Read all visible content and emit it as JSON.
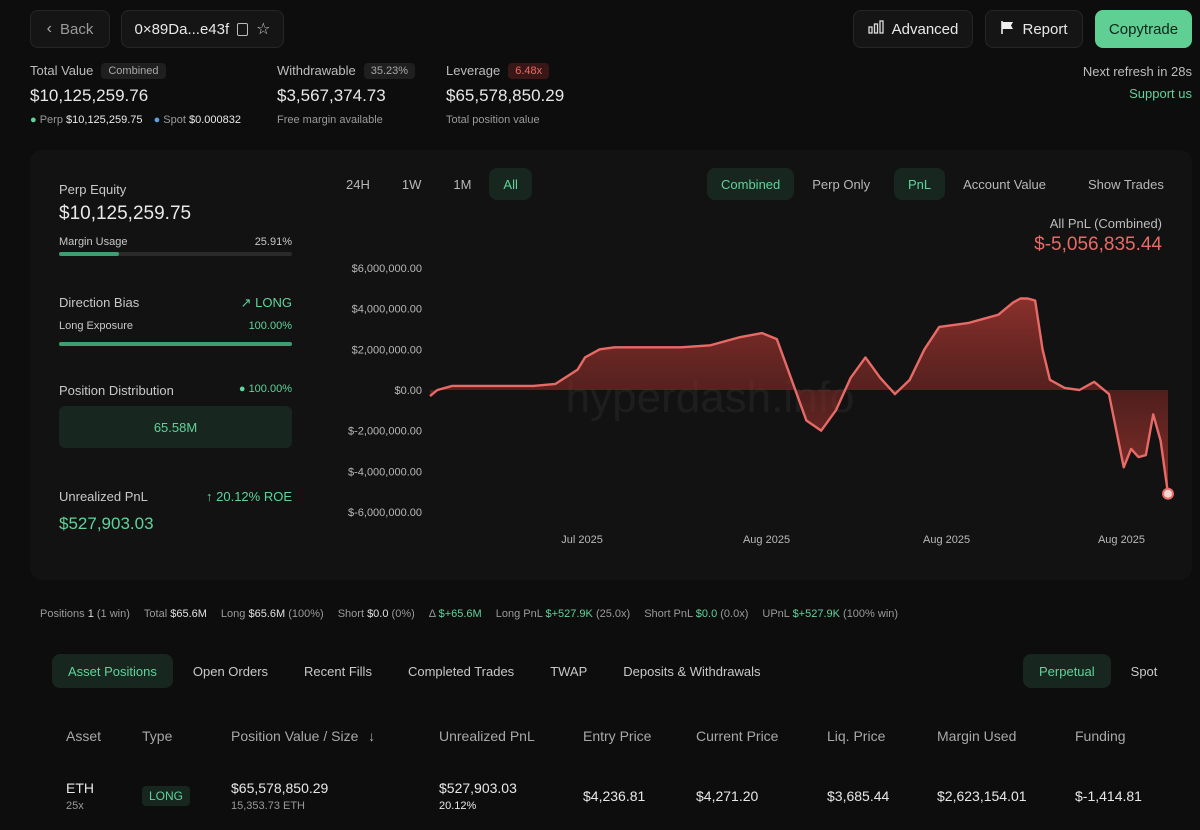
{
  "header": {
    "back_label": "Back",
    "address": "0×89Da...e43f",
    "advanced_label": "Advanced",
    "report_label": "Report",
    "copytrade_label": "Copytrade",
    "refresh_text": "Next refresh in 28s",
    "support_link": "Support us"
  },
  "summary": {
    "total_value_label": "Total Value",
    "total_value_badge": "Combined",
    "total_value": "$10,125,259.76",
    "perp_label": "Perp",
    "perp_value": "$10,125,259.75",
    "spot_label": "Spot",
    "spot_value": "$0.000832",
    "withdrawable_label": "Withdrawable",
    "withdrawable_badge": "35.23%",
    "withdrawable_value": "$3,567,374.73",
    "withdrawable_sub": "Free margin available",
    "leverage_label": "Leverage",
    "leverage_badge": "6.48x",
    "leverage_value": "$65,578,850.29",
    "leverage_sub": "Total position value"
  },
  "left_panel": {
    "perp_equity_label": "Perp Equity",
    "perp_equity_value": "$10,125,259.75",
    "margin_usage_label": "Margin Usage",
    "margin_usage_value": "25.91%",
    "margin_usage_fraction": 0.2591,
    "direction_bias_label": "Direction Bias",
    "direction_bias_value": "LONG",
    "long_exposure_label": "Long Exposure",
    "long_exposure_value": "100.00%",
    "long_exposure_fraction": 1.0,
    "position_distribution_label": "Position Distribution",
    "position_distribution_value": "100.00%",
    "position_distribution_amount": "65.58M",
    "unrealized_pnl_label": "Unrealized PnL",
    "unrealized_pnl_roe": "20.12% ROE",
    "unrealized_pnl_value": "$527,903.03"
  },
  "chart_controls": {
    "timeframes": [
      "24H",
      "1W",
      "1M",
      "All"
    ],
    "timeframe_active": "All",
    "scope": [
      "Combined",
      "Perp Only"
    ],
    "scope_active": "Combined",
    "metric": [
      "PnL",
      "Account Value"
    ],
    "metric_active": "PnL",
    "show_trades_label": "Show Trades"
  },
  "chart_header": {
    "title": "All PnL (Combined)",
    "value": "$-5,056,835.44"
  },
  "watermark": "hyperdash.info",
  "chart_data": {
    "type": "area",
    "ylim": [
      -6000000,
      6000000
    ],
    "yticks": [
      "$6,000,000.00",
      "$4,000,000.00",
      "$2,000,000.00",
      "$0.00",
      "$-2,000,000.00",
      "$-4,000,000.00",
      "$-6,000,000.00"
    ],
    "ytick_values": [
      6000000,
      4000000,
      2000000,
      0,
      -2000000,
      -4000000,
      -6000000
    ],
    "xtick_labels": [
      "Jul 2025",
      "Aug 2025",
      "Aug 2025",
      "Aug 2025"
    ],
    "xtick_positions": [
      0.206,
      0.456,
      0.7,
      0.937
    ],
    "series": [
      {
        "x": [
          0,
          0.01,
          0.03,
          0.06,
          0.1,
          0.14,
          0.17,
          0.2,
          0.21,
          0.23,
          0.25,
          0.27,
          0.3,
          0.34,
          0.38,
          0.42,
          0.45,
          0.47,
          0.49,
          0.51,
          0.53,
          0.55,
          0.57,
          0.59,
          0.61,
          0.63,
          0.65,
          0.67,
          0.69,
          0.71,
          0.73,
          0.75,
          0.77,
          0.79,
          0.8,
          0.81,
          0.82,
          0.83,
          0.84,
          0.86,
          0.88,
          0.9,
          0.92,
          0.93,
          0.94,
          0.95,
          0.96,
          0.97,
          0.98,
          0.99,
          1.0
        ],
        "y": [
          -300000,
          0,
          200000,
          200000,
          200000,
          200000,
          300000,
          1000000,
          1600000,
          2000000,
          2100000,
          2100000,
          2100000,
          2100000,
          2200000,
          2600000,
          2800000,
          2500000,
          500000,
          -1500000,
          -2000000,
          -1000000,
          600000,
          1600000,
          600000,
          -200000,
          500000,
          2000000,
          3100000,
          3200000,
          3300000,
          3500000,
          3700000,
          4300000,
          4500000,
          4500000,
          4400000,
          2000000,
          500000,
          100000,
          0,
          400000,
          -200000,
          -2000000,
          -3800000,
          -2900000,
          -3300000,
          -3200000,
          -1200000,
          -2500000,
          -5100000
        ]
      }
    ]
  },
  "positions_summary": {
    "positions_label": "Positions",
    "positions_count": "1",
    "positions_win": "(1 win)",
    "total_label": "Total",
    "total_value": "$65.6M",
    "long_label": "Long",
    "long_value": "$65.6M",
    "long_pct": "(100%)",
    "short_label": "Short",
    "short_value": "$0.0",
    "short_pct": "(0%)",
    "delta_symbol": "Δ",
    "delta_value": "$+65.6M",
    "long_pnl_label": "Long PnL",
    "long_pnl_value": "$+527.9K",
    "long_pnl_mult": "(25.0x)",
    "short_pnl_label": "Short PnL",
    "short_pnl_value": "$0.0",
    "short_pnl_mult": "(0.0x)",
    "upnl_label": "UPnL",
    "upnl_value": "$+527.9K",
    "upnl_win": "(100% win)"
  },
  "tabs": [
    "Asset Positions",
    "Open Orders",
    "Recent Fills",
    "Completed Trades",
    "TWAP",
    "Deposits & Withdrawals"
  ],
  "tabs_active": "Asset Positions",
  "market_toggle": [
    "Perpetual",
    "Spot"
  ],
  "market_active": "Perpetual",
  "table": {
    "headers": [
      "Asset",
      "Type",
      "Position Value / Size",
      "Unrealized PnL",
      "Entry Price",
      "Current Price",
      "Liq. Price",
      "Margin Used",
      "Funding"
    ],
    "rows": [
      {
        "asset": "ETH",
        "leverage": "25x",
        "type": "LONG",
        "position_value": "$65,578,850.29",
        "position_size": "15,353.73 ETH",
        "unrealized_pnl": "$527,903.03",
        "unrealized_pct": "20.12%",
        "entry_price": "$4,236.81",
        "current_price": "$4,271.20",
        "liq_price": "$3,685.44",
        "margin_used": "$2,623,154.01",
        "funding": "$-1,414.81"
      }
    ]
  },
  "colors": {
    "accent_green": "#5fd39a",
    "negative_red": "#e86a66",
    "background": "#0d0d0d"
  }
}
